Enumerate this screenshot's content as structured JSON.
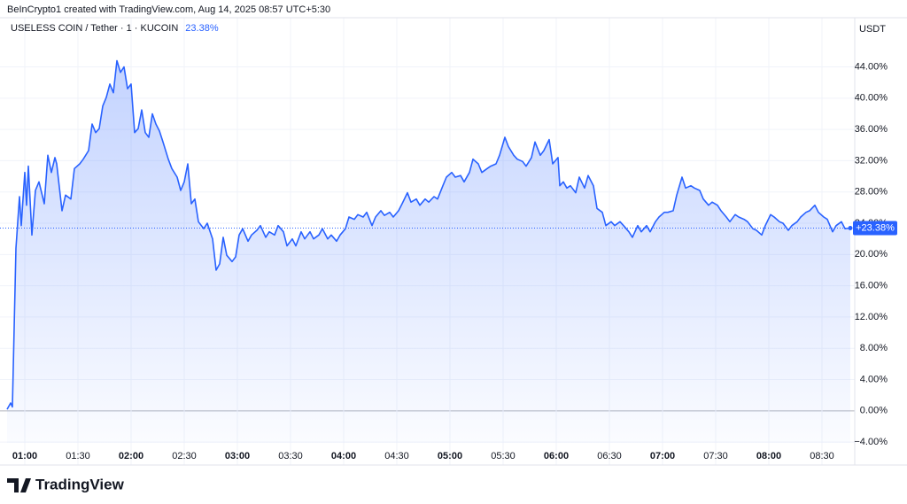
{
  "header": {
    "credit": "BeInCrypto1 created with TradingView.com, Aug 14, 2025 08:57 UTC+5:30",
    "change": "23.38%",
    "currency": "USDT"
  },
  "logo": "TradingView",
  "chart_data": {
    "type": "area",
    "x": [
      "00:50",
      "00:52",
      "00:53",
      "00:55",
      "00:57",
      "00:58",
      "01:00",
      "01:01",
      "01:02",
      "01:04",
      "01:06",
      "01:08",
      "01:11",
      "01:13",
      "01:15",
      "01:17",
      "01:18",
      "01:21",
      "01:23",
      "01:26",
      "01:28",
      "01:31",
      "01:33",
      "01:36",
      "01:38",
      "01:40",
      "01:42",
      "01:44",
      "01:46",
      "01:48",
      "01:50",
      "01:52",
      "01:54",
      "01:56",
      "01:58",
      "02:00",
      "02:02",
      "02:04",
      "02:06",
      "02:08",
      "02:10",
      "02:12",
      "02:14",
      "02:16",
      "02:18",
      "02:21",
      "02:23",
      "02:26",
      "02:28",
      "02:30",
      "02:32",
      "02:34",
      "02:36",
      "02:38",
      "02:41",
      "02:43",
      "02:46",
      "02:48",
      "02:50",
      "02:52",
      "02:54",
      "02:57",
      "02:59",
      "03:01",
      "03:03",
      "03:06",
      "03:08",
      "03:11",
      "03:13",
      "03:16",
      "03:18",
      "03:21",
      "03:23",
      "03:26",
      "03:28",
      "03:31",
      "03:33",
      "03:36",
      "03:38",
      "03:41",
      "03:43",
      "03:46",
      "03:48",
      "03:51",
      "03:53",
      "03:56",
      "03:58",
      "04:01",
      "04:03",
      "04:06",
      "04:08",
      "04:11",
      "04:13",
      "04:16",
      "04:18",
      "04:21",
      "04:23",
      "04:26",
      "04:28",
      "04:31",
      "04:33",
      "04:36",
      "04:38",
      "04:41",
      "04:43",
      "04:46",
      "04:48",
      "04:51",
      "04:53",
      "04:56",
      "04:58",
      "05:01",
      "05:03",
      "05:06",
      "05:08",
      "05:11",
      "05:13",
      "05:16",
      "05:18",
      "05:21",
      "05:23",
      "05:26",
      "05:28",
      "05:31",
      "05:33",
      "05:36",
      "05:38",
      "05:41",
      "05:43",
      "05:46",
      "05:48",
      "05:51",
      "05:53",
      "05:56",
      "05:58",
      "06:01",
      "06:02",
      "06:04",
      "06:06",
      "06:08",
      "06:11",
      "06:13",
      "06:16",
      "06:18",
      "06:21",
      "06:23",
      "06:26",
      "06:28",
      "06:31",
      "06:33",
      "06:36",
      "06:38",
      "06:41",
      "06:43",
      "06:46",
      "06:48",
      "06:51",
      "06:53",
      "06:56",
      "06:58",
      "07:01",
      "07:03",
      "07:06",
      "07:08",
      "07:11",
      "07:13",
      "07:16",
      "07:18",
      "07:21",
      "07:23",
      "07:26",
      "07:28",
      "07:31",
      "07:33",
      "07:36",
      "07:38",
      "07:41",
      "07:43",
      "07:46",
      "07:48",
      "07:51",
      "07:53",
      "07:56",
      "07:58",
      "08:01",
      "08:03",
      "08:06",
      "08:08",
      "08:11",
      "08:13",
      "08:16",
      "08:18",
      "08:21",
      "08:23",
      "08:26",
      "08:28",
      "08:31",
      "08:33",
      "08:36",
      "08:38",
      "08:41",
      "08:43",
      "08:46"
    ],
    "series": [
      {
        "name": "USELESS COIN / Tether · 1 · KUCOIN",
        "color": "#2962ff",
        "values": [
          0.2,
          1.0,
          0.5,
          20.8,
          27.4,
          23.7,
          30.5,
          26.3,
          31.3,
          22.5,
          28.2,
          29.3,
          26.5,
          32.7,
          30.5,
          32.4,
          31.6,
          25.6,
          27.6,
          27.1,
          31.0,
          31.6,
          32.2,
          33.3,
          36.7,
          35.6,
          36.1,
          39.0,
          40.1,
          41.8,
          40.7,
          44.8,
          43.3,
          44.0,
          41.2,
          41.8,
          35.6,
          36.1,
          38.5,
          35.6,
          35.0,
          38.0,
          36.7,
          35.8,
          34.4,
          32.2,
          31.0,
          29.9,
          28.2,
          29.3,
          31.6,
          26.5,
          27.1,
          24.2,
          23.3,
          24.0,
          22.0,
          18.0,
          18.8,
          22.2,
          19.9,
          19.1,
          19.7,
          22.5,
          23.3,
          21.7,
          22.5,
          23.1,
          23.7,
          22.2,
          22.9,
          22.5,
          23.7,
          22.9,
          21.1,
          22.0,
          21.1,
          22.9,
          22.0,
          22.9,
          22.0,
          22.5,
          23.3,
          22.0,
          22.5,
          21.7,
          22.5,
          23.3,
          24.8,
          24.5,
          25.1,
          24.8,
          25.4,
          23.7,
          24.8,
          25.6,
          25.0,
          25.4,
          24.8,
          25.6,
          26.5,
          27.9,
          26.7,
          27.1,
          26.3,
          27.1,
          26.7,
          27.4,
          27.1,
          28.8,
          29.9,
          30.5,
          29.9,
          30.1,
          29.3,
          30.5,
          32.2,
          31.6,
          30.5,
          31.0,
          31.3,
          31.6,
          32.7,
          35.0,
          33.8,
          32.7,
          32.2,
          31.9,
          31.3,
          32.4,
          34.4,
          32.7,
          33.3,
          34.7,
          31.6,
          32.4,
          28.8,
          29.3,
          28.5,
          28.8,
          27.9,
          29.9,
          28.5,
          30.1,
          28.8,
          25.9,
          25.4,
          23.7,
          24.2,
          23.7,
          24.2,
          23.7,
          22.9,
          22.2,
          23.7,
          22.9,
          23.7,
          22.9,
          24.2,
          24.8,
          25.4,
          25.4,
          25.6,
          27.6,
          29.9,
          28.5,
          28.8,
          28.5,
          28.2,
          27.1,
          26.3,
          26.7,
          26.3,
          25.6,
          24.8,
          24.2,
          25.1,
          24.8,
          24.5,
          24.2,
          23.3,
          23.1,
          22.5,
          23.7,
          25.1,
          24.8,
          24.2,
          24.0,
          23.1,
          23.7,
          24.2,
          24.8,
          25.4,
          25.6,
          26.3,
          25.4,
          24.8,
          24.5,
          22.9,
          23.7,
          24.2,
          23.3,
          23.38
        ]
      }
    ],
    "last_value_label": "+23.38%",
    "xlim": [
      "00:50",
      "08:48"
    ],
    "xticks": [
      "01:00",
      "01:30",
      "02:00",
      "02:30",
      "03:00",
      "03:30",
      "04:00",
      "04:30",
      "05:00",
      "05:30",
      "06:00",
      "06:30",
      "07:00",
      "07:30",
      "08:00",
      "08:30"
    ],
    "ylim": [
      -4.1,
      47.8
    ],
    "yticks": [
      {
        "value": -4,
        "label": "−4.00%"
      },
      {
        "value": 0,
        "label": "0.00%"
      },
      {
        "value": 4,
        "label": "4.00%"
      },
      {
        "value": 8,
        "label": "8.00%"
      },
      {
        "value": 12,
        "label": "12.00%"
      },
      {
        "value": 16,
        "label": "16.00%"
      },
      {
        "value": 20,
        "label": "20.00%"
      },
      {
        "value": 24,
        "label": "24.00%"
      },
      {
        "value": 28,
        "label": "28.00%"
      },
      {
        "value": 32,
        "label": "32.00%"
      },
      {
        "value": 36,
        "label": "36.00%"
      },
      {
        "value": 40,
        "label": "40.00%"
      },
      {
        "value": 44,
        "label": "44.00%"
      }
    ],
    "grid": true
  }
}
